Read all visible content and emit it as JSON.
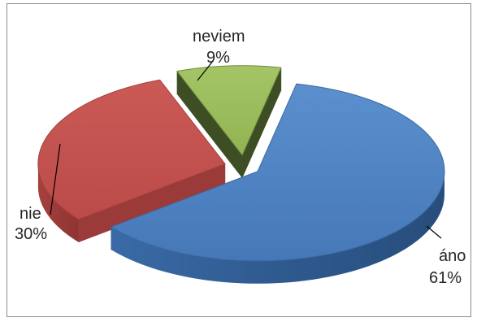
{
  "chart_data": {
    "type": "pie",
    "style": "3d-exploded",
    "slices": [
      {
        "label": "áno",
        "value": 61,
        "value_label": "61%",
        "color": "#4f81bd"
      },
      {
        "label": "nie",
        "value": 30,
        "value_label": "30%",
        "color": "#c0504d"
      },
      {
        "label": "neviem",
        "value": 9,
        "value_label": "9%",
        "color": "#9bbb59"
      }
    ],
    "legend": "none",
    "data_labels": "outside with leader lines"
  }
}
